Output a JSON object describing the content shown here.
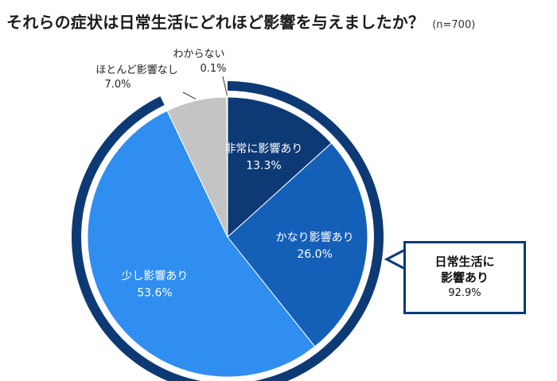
{
  "title": "それらの症状は日常生活にどれほど影響を与えましたか？",
  "sample_size": "(n=700)",
  "callout": {
    "line1": "日常生活に",
    "line2": "影響あり",
    "value": "92.9%"
  },
  "colors": {
    "non_joni": "#0d3a75",
    "kanari": "#1460b8",
    "sukoshi": "#2f8ef0",
    "hotondo": "#c4c4c4",
    "wakaranai": "#ffffff",
    "ring": "#0d3a75"
  },
  "chart_data": {
    "type": "pie",
    "title": "それらの症状は日常生活にどれほど影響を与えましたか？",
    "slices": [
      {
        "label": "非常に影響あり",
        "value": 13.3,
        "value_label": "13.3%",
        "color": "#0d3a75"
      },
      {
        "label": "かなり影響あり",
        "value": 26.0,
        "value_label": "26.0%",
        "color": "#1460b8"
      },
      {
        "label": "少し影響あり",
        "value": 53.6,
        "value_label": "53.6%",
        "color": "#2f8ef0"
      },
      {
        "label": "ほとんど影響なし",
        "value": 7.0,
        "value_label": "7.0%",
        "color": "#c4c4c4"
      },
      {
        "label": "わからない",
        "value": 0.1,
        "value_label": "0.1%",
        "color": "#ffffff"
      }
    ],
    "grouped_ring": {
      "label": "日常生活に影響あり",
      "value": 92.9,
      "value_label": "92.9%"
    }
  }
}
